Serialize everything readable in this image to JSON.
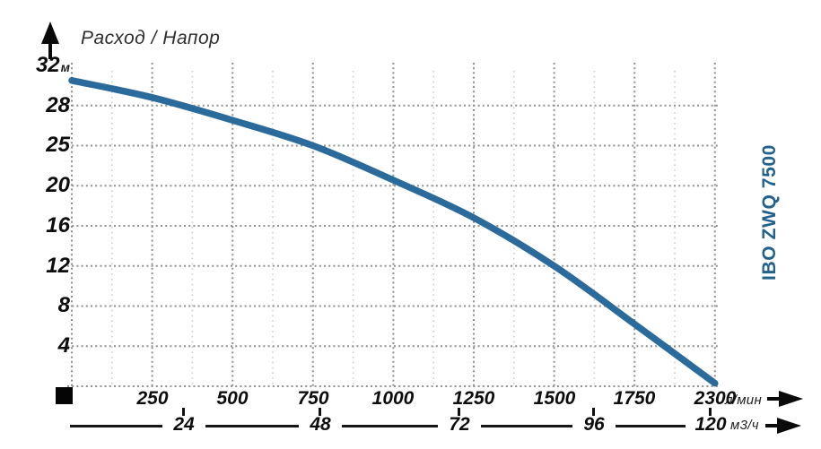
{
  "brand": {
    "label": "IBO ZWQ 7500",
    "color": "#21618c"
  },
  "origin_marker": {
    "shape": "black-square"
  },
  "chart_data": {
    "type": "line",
    "title": "Расход / Напор",
    "grid": "dotted",
    "legend": "none",
    "x_axis_primary": {
      "unit": "л/мин",
      "ticks": [
        "250",
        "500",
        "750",
        "1000",
        "1250",
        "1500",
        "1750",
        "2300"
      ]
    },
    "x_axis_secondary": {
      "unit": "м3/ч",
      "ticks": [
        "24",
        "48",
        "72",
        "96",
        "120"
      ]
    },
    "y_axis": {
      "unit": "м",
      "ticks": [
        "4",
        "8",
        "12",
        "16",
        "20",
        "25",
        "28",
        "32"
      ],
      "range_top_label": "32м"
    },
    "series": [
      {
        "name": "IBO ZWQ 7500",
        "color": "#2b6b9b",
        "points": [
          {
            "flow_l_min": 0,
            "head_m": 30.5
          },
          {
            "flow_l_min": 250,
            "head_m": 28.8
          },
          {
            "flow_l_min": 500,
            "head_m": 26.9
          },
          {
            "flow_l_min": 750,
            "head_m": 25.0
          },
          {
            "flow_l_min": 1000,
            "head_m": 20.7
          },
          {
            "flow_l_min": 1250,
            "head_m": 16.8
          },
          {
            "flow_l_min": 1500,
            "head_m": 12.0
          },
          {
            "flow_l_min": 1750,
            "head_m": 6.2
          },
          {
            "flow_l_min": 2300,
            "head_m": 0.3
          }
        ]
      }
    ],
    "colors": {
      "curve": "#2b6b9b",
      "grid_major": "#909090",
      "grid_minor": "#cdcdcd",
      "axis_text": "#0d0d0d"
    }
  }
}
